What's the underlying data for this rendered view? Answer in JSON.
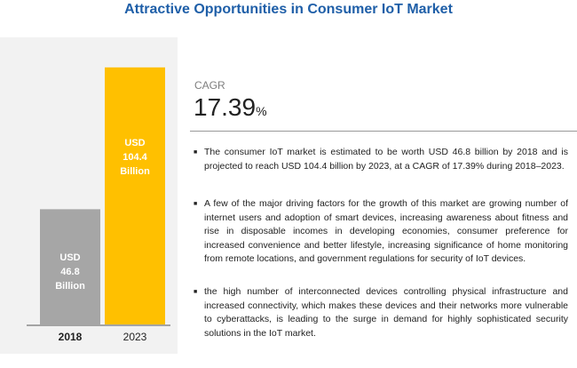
{
  "chart_data": {
    "type": "bar",
    "title": "Attractive Opportunities in Consumer IoT Market",
    "categories": [
      "2018",
      "2023"
    ],
    "values": [
      46.8,
      104.4
    ],
    "value_labels": [
      "USD 46.8 Billion",
      "USD 104.4 Billion"
    ],
    "colors": [
      "#a6a6a6",
      "#ffc000"
    ]
  },
  "cagr": {
    "label": "CAGR",
    "value": "17.39",
    "unit": "%"
  },
  "bullets": [
    "The consumer IoT market is estimated to be worth USD 46.8 billion by 2018 and is projected to reach USD 104.4 billion by 2023, at a CAGR of 17.39% during 2018–2023.",
    "A few of the major driving factors for the growth of this market are growing number of internet users and adoption of smart devices, increasing awareness about fitness and rise in disposable incomes in developing economies, consumer preference for increased convenience and better lifestyle, increasing significance of home monitoring from remote locations, and government regulations for security of IoT devices.",
    "the high number of interconnected devices controlling physical infrastructure and increased connectivity, which makes these devices and their networks more vulnerable to cyberattacks, is leading to the surge in demand for highly sophisticated security solutions in the IoT market."
  ]
}
